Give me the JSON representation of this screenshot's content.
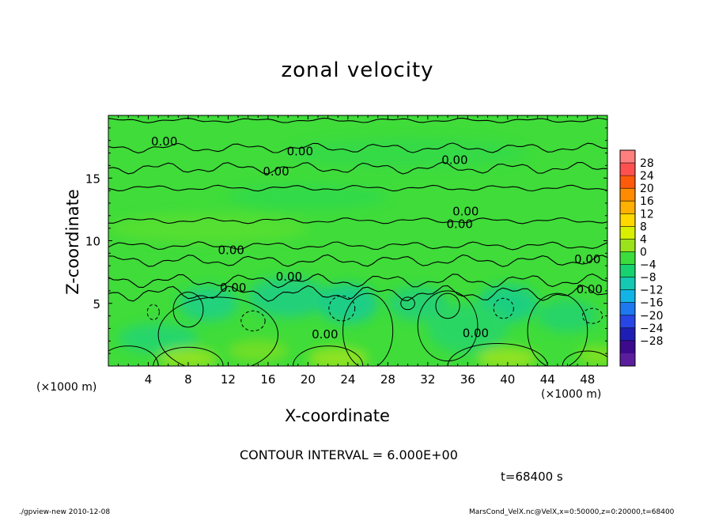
{
  "chart_data": {
    "type": "contour",
    "title": "zonal velocity",
    "xlabel": "X-coordinate",
    "ylabel": "Z-coordinate",
    "x_unit": "(×1000 m)",
    "y_unit": "(×1000 m)",
    "xlim": [
      0,
      50
    ],
    "ylim": [
      0,
      20
    ],
    "x_ticks": [
      "4",
      "8",
      "12",
      "16",
      "20",
      "24",
      "28",
      "32",
      "36",
      "40",
      "44",
      "48"
    ],
    "x_tick_values": [
      4,
      8,
      12,
      16,
      20,
      24,
      28,
      32,
      36,
      40,
      44,
      48
    ],
    "y_ticks": [
      "5",
      "10",
      "15"
    ],
    "y_tick_values": [
      5,
      10,
      15
    ],
    "contour_interval_text": "CONTOUR INTERVAL = 6.000E+00",
    "contour_labels": [
      "0.00",
      "0.00",
      "0.00",
      "0.00",
      "0.00",
      "0.00",
      "0.00",
      "0.00",
      "0.00",
      "0.00",
      "0.00",
      "0.00",
      "0.00"
    ],
    "colorbar": {
      "labels": [
        "28",
        "24",
        "20",
        "16",
        "12",
        "8",
        "4",
        "0",
        "−4",
        "−8",
        "−12",
        "−16",
        "−20",
        "−24",
        "−28"
      ],
      "colors": [
        "#ff7f7f",
        "#ff5050",
        "#ff5a0a",
        "#ff8c00",
        "#ffb000",
        "#ffd800",
        "#d8ef00",
        "#9be21d",
        "#3cdc3c",
        "#17d26e",
        "#14c8b2",
        "#12b4e6",
        "#1e78f0",
        "#2846e6",
        "#1e1eb4",
        "#3c0a8c",
        "#5a1e9c"
      ]
    },
    "time_text": "t=68400 s",
    "footer_left": "./gpview-new  2010-12-08",
    "footer_right": "MarsCond_VelX.nc@VelX,x=0:50000,z=0:20000,t=68400"
  }
}
